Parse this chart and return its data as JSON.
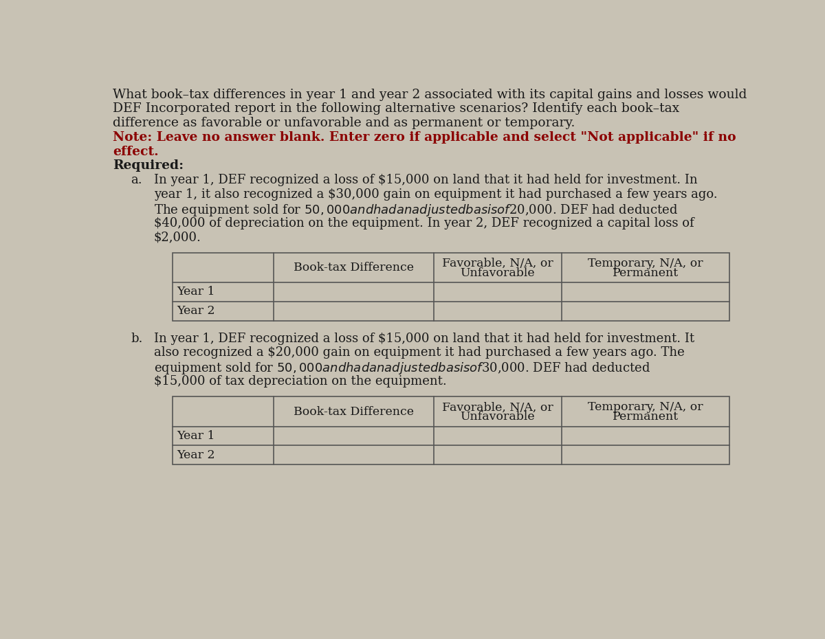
{
  "bg_color": "#c8c2b4",
  "text_color": "#1a1a1a",
  "red_color": "#8b0000",
  "title_lines": [
    "What book–tax differences in year 1 and year 2 associated with its capital gains and losses would",
    "DEF Incorporated report in the following alternative scenarios? Identify each book–tax",
    "difference as favorable or unfavorable and as permanent or temporary."
  ],
  "note_line1": "Note: Leave no answer blank. Enter zero if applicable and select \"Not applicable\" if no",
  "note_line2": "effect.",
  "required_label": "Required:",
  "scenario_a_prefix": "a.",
  "scenario_a_body": [
    "In year 1, DEF recognized a loss of $15,000 on land that it had held for investment. In",
    "year 1, it also recognized a $30,000 gain on equipment it had purchased a few years ago.",
    "The equipment sold for $50,000 and had an adjusted basis of $20,000. DEF had deducted",
    "$40,000 of depreciation on the equipment. In year 2, DEF recognized a capital loss of",
    "$2,000."
  ],
  "scenario_b_prefix": "b.",
  "scenario_b_body": [
    "In year 1, DEF recognized a loss of $15,000 on land that it had held for investment. It",
    "also recognized a $20,000 gain on equipment it had purchased a few years ago. The",
    "equipment sold for $50,000 and had an adjusted basis of $30,000. DEF had deducted",
    "$15,000 of tax depreciation on the equipment."
  ],
  "table_col2_header": "Book-tax Difference",
  "table_col3_header_line1": "Favorable, N/A, or",
  "table_col3_header_line2": "Unfavorable",
  "table_col4_header_line1": "Temporary, N/A, or",
  "table_col4_header_line2": "Permanent",
  "table_rows": [
    "Year 1",
    "Year 2"
  ],
  "font_size_main": 13.5,
  "font_size_note": 13.5,
  "font_size_required": 13.5,
  "font_size_scenario": 13.0,
  "font_size_table_header": 12.5,
  "font_size_table_row": 12.5
}
